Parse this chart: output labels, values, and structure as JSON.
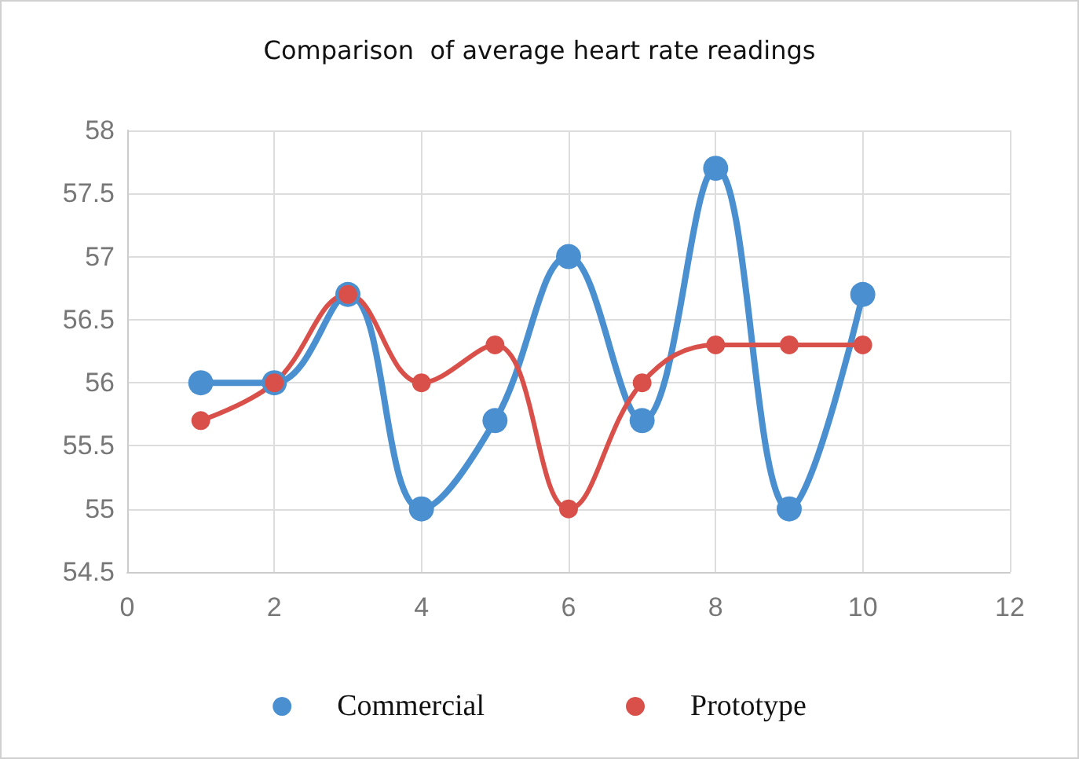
{
  "chart_data": {
    "type": "line",
    "title": "Comparison  of average heart rate readings",
    "x": [
      1,
      2,
      3,
      4,
      5,
      6,
      7,
      8,
      9,
      10
    ],
    "series": [
      {
        "name": "Commercial",
        "color": "#4a90d0",
        "values": [
          56.0,
          56.0,
          56.7,
          55.0,
          55.7,
          57.0,
          55.7,
          57.7,
          55.0,
          56.7
        ]
      },
      {
        "name": "Prototype",
        "color": "#d9504a",
        "values": [
          55.7,
          56.0,
          56.7,
          56.0,
          56.3,
          55.0,
          56.0,
          56.3,
          56.3,
          56.3
        ]
      }
    ],
    "xlim": [
      0,
      12
    ],
    "xticks": [
      0,
      2,
      4,
      6,
      8,
      10,
      12
    ],
    "ylim": [
      54.5,
      58
    ],
    "yticks": [
      54.5,
      55,
      55.5,
      56,
      56.5,
      57,
      57.5,
      58
    ],
    "grid": true,
    "legend": "bottom",
    "marker": "circle",
    "line_style": "solid"
  }
}
